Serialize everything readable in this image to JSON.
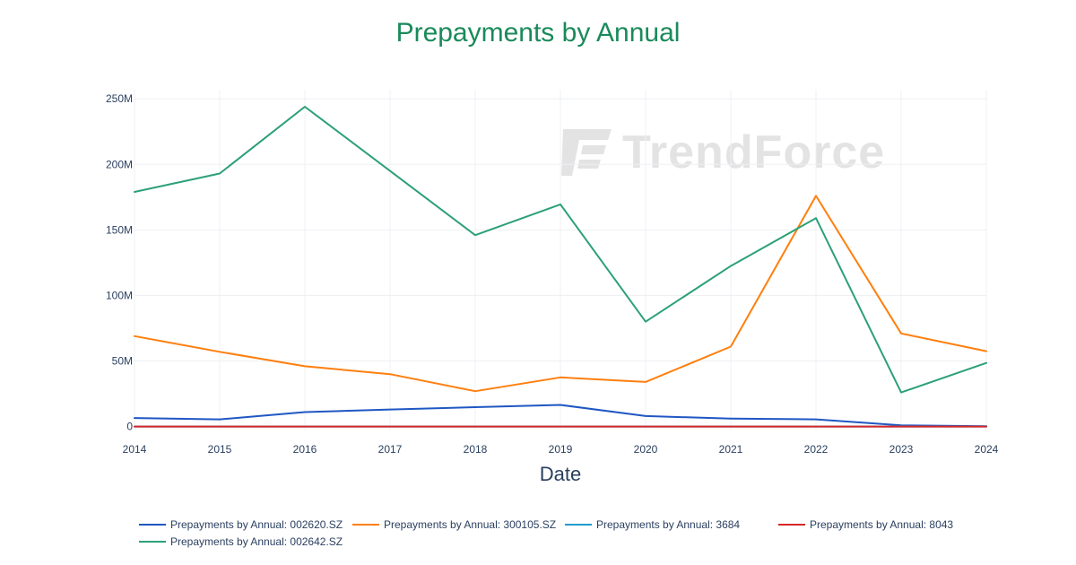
{
  "chart_data": {
    "type": "line",
    "title": "Prepayments by Annual",
    "xlabel": "Date",
    "ylabel": "",
    "x": [
      2014,
      2015,
      2016,
      2017,
      2018,
      2019,
      2020,
      2021,
      2022,
      2023,
      2024
    ],
    "x_tick_labels": [
      "2014",
      "2015",
      "2016",
      "2017",
      "2018",
      "2019",
      "2020",
      "2021",
      "2022",
      "2023",
      "2024"
    ],
    "y_ticks": [
      0,
      50000000,
      100000000,
      150000000,
      200000000,
      250000000
    ],
    "y_tick_labels": [
      "0",
      "50M",
      "100M",
      "150M",
      "200M",
      "250M"
    ],
    "xlim": [
      2014,
      2024
    ],
    "ylim": [
      -3000000,
      257000000
    ],
    "grid": true,
    "legend_position": "bottom",
    "series": [
      {
        "name": "Prepayments by Annual: 002620.SZ",
        "color": "#1f57c3",
        "values": [
          6500000,
          5500000,
          11000000,
          13000000,
          14800000,
          16500000,
          8000000,
          6000000,
          5500000,
          1000000,
          300000
        ]
      },
      {
        "name": "Prepayments by Annual: 300105.SZ",
        "color": "#ff7f0e",
        "values": [
          69000000,
          57000000,
          46000000,
          40000000,
          27000000,
          37500000,
          34000000,
          61000000,
          176000000,
          71000000,
          57500000
        ]
      },
      {
        "name": "Prepayments by Annual: 3684",
        "color": "#1f9bcf",
        "values": [
          0,
          0,
          0,
          0,
          0,
          0,
          0,
          0,
          0,
          0,
          0
        ]
      },
      {
        "name": "Prepayments by Annual: 8043",
        "color": "#d62728",
        "values": [
          0,
          0,
          0,
          0,
          0,
          0,
          0,
          0,
          0,
          0,
          0
        ]
      },
      {
        "name": "Prepayments by Annual: 002642.SZ",
        "color": "#2ca078",
        "values": [
          179000000,
          193000000,
          244000000,
          195000000,
          146000000,
          169500000,
          80000000,
          122500000,
          159000000,
          26000000,
          48500000
        ]
      }
    ]
  },
  "watermark": {
    "text": "TrendForce"
  }
}
